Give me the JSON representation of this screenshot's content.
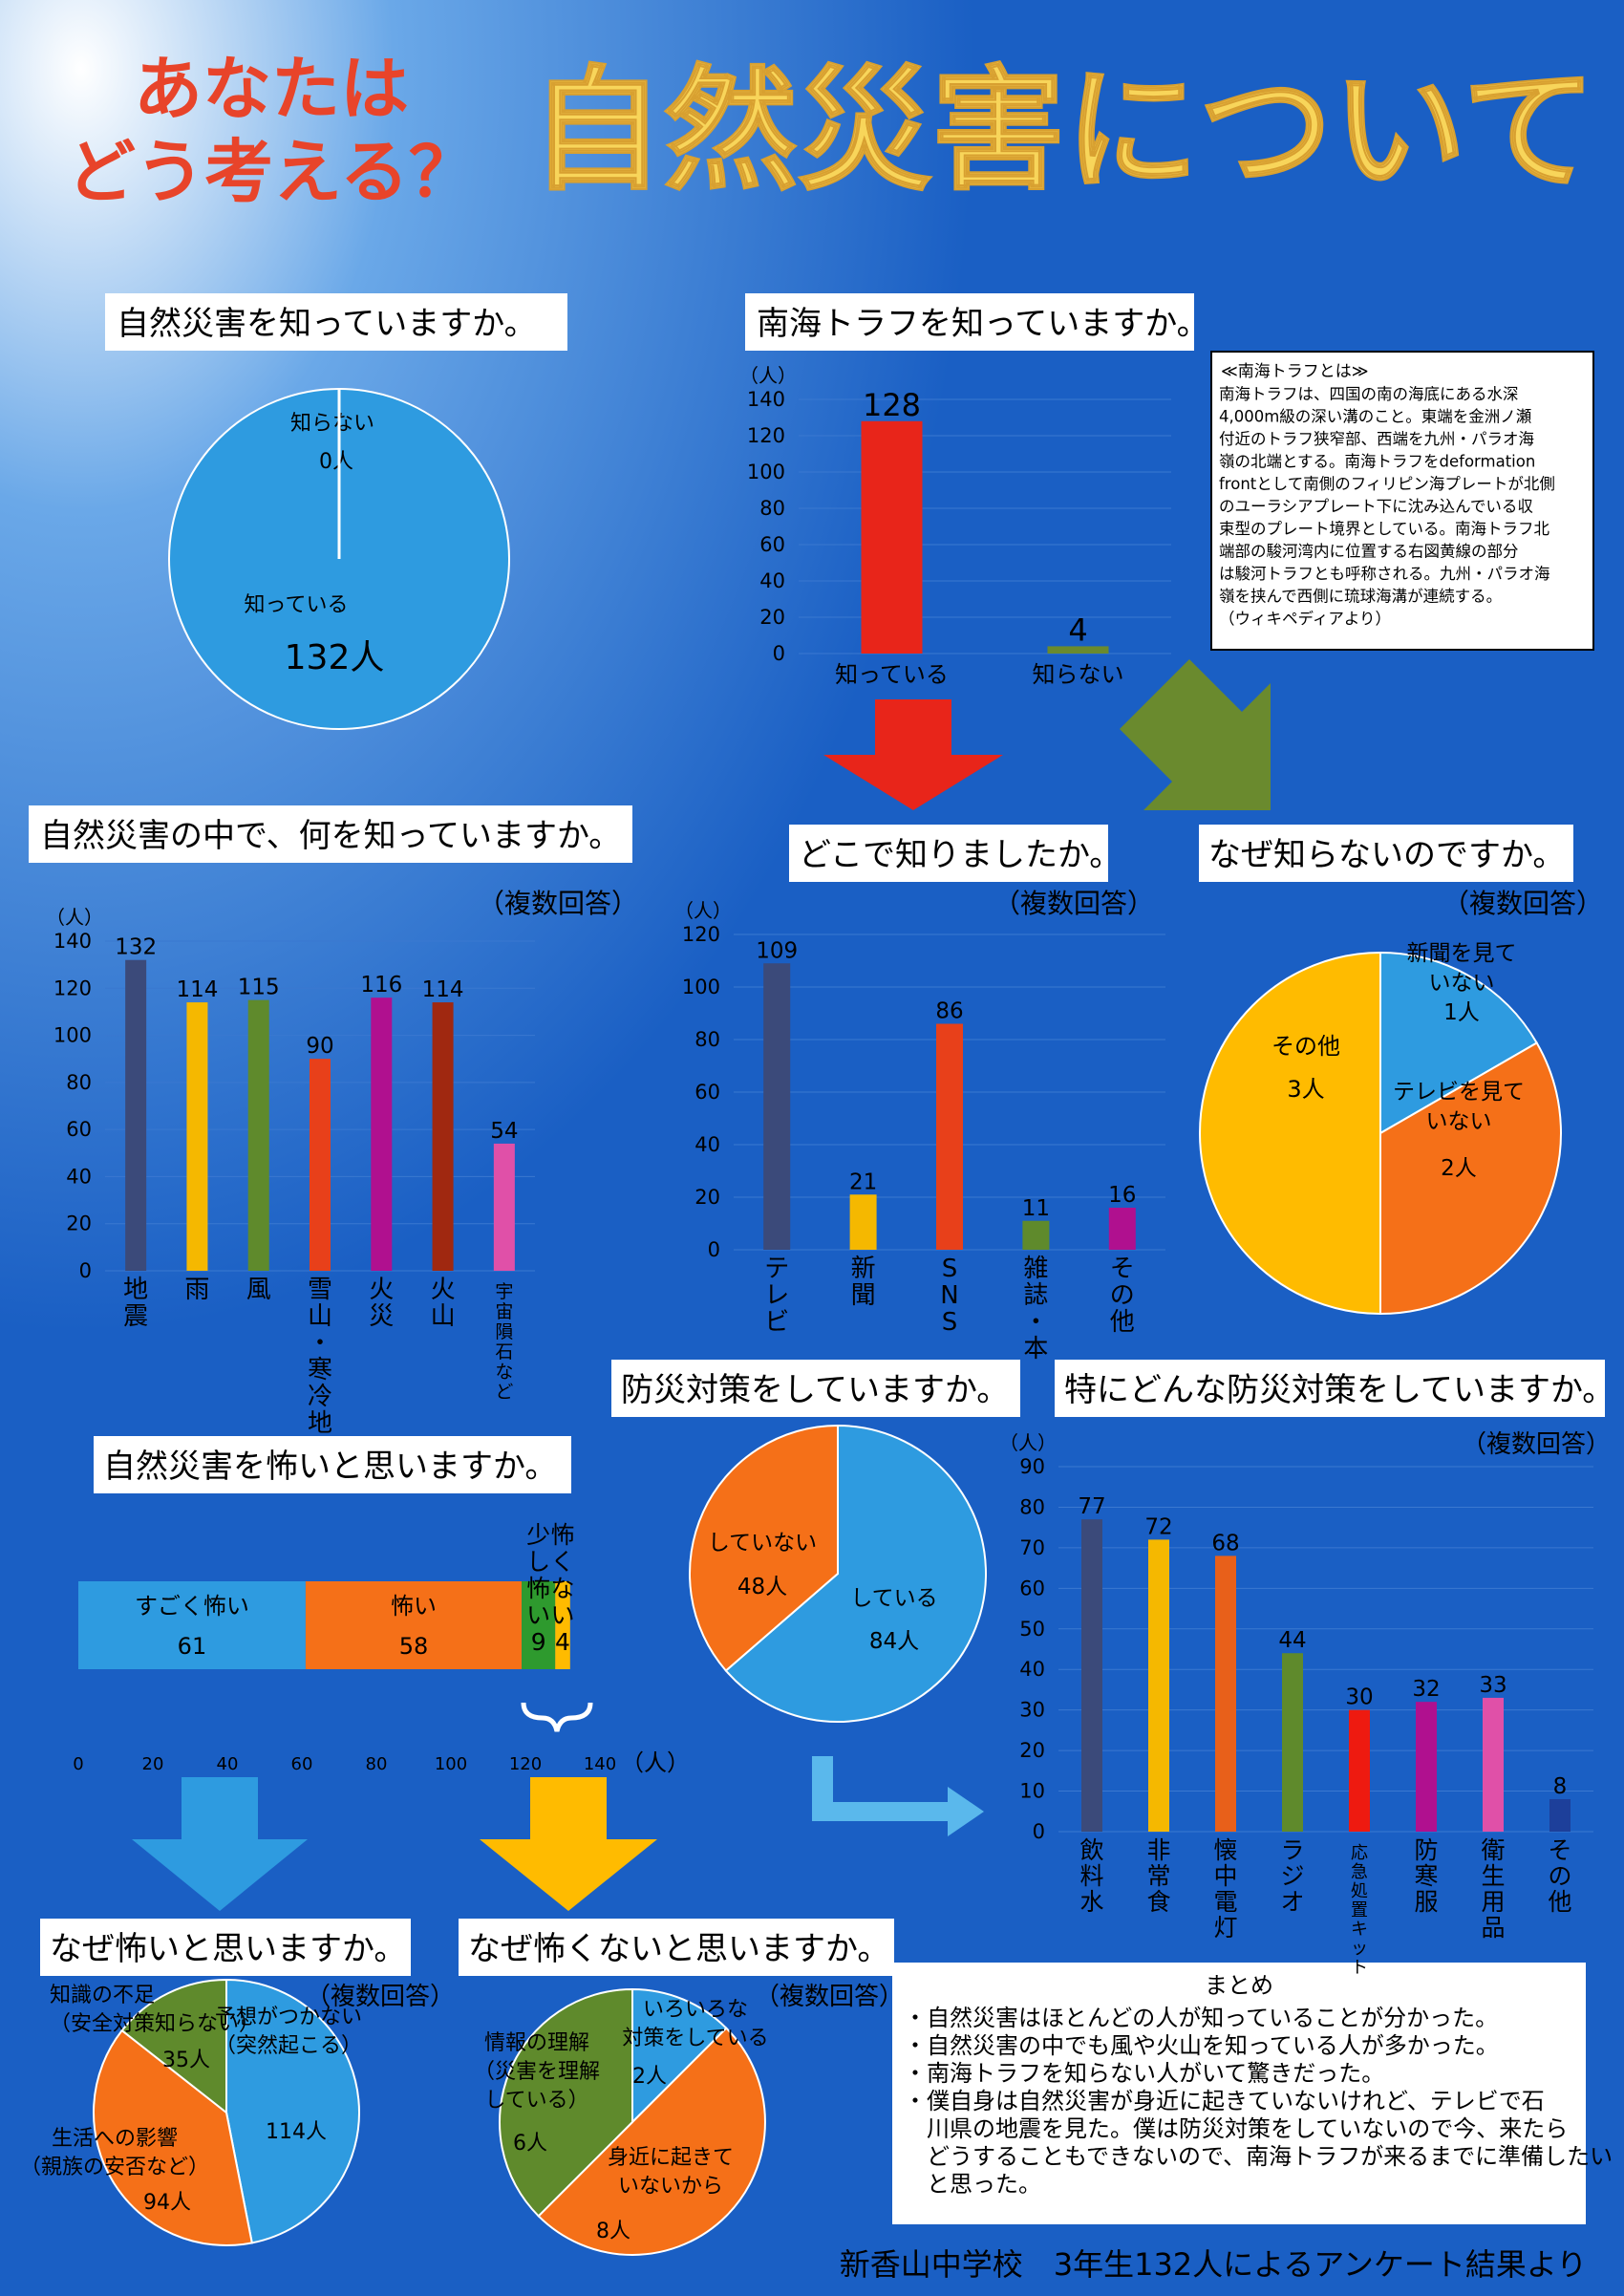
{
  "header": {
    "sub_line1": "あなたは",
    "sub_line2": "どう考える？",
    "title": "自然災害について"
  },
  "colors": {
    "bg": "#1a5fc4",
    "title": "#f8d55a",
    "sub": "#e8442a",
    "box": "#ffffff"
  },
  "sections": {
    "q1": "自然災害を知っていますか。",
    "q2": "南海トラフを知っていますか。",
    "q3": "自然災害の中で、何を知っていますか。",
    "q4": "どこで知りましたか。",
    "q5": "なぜ知らないのですか。",
    "q6": "防災対策をしていますか。",
    "q7": "特にどんな防災対策をしていますか。",
    "q8": "自然災害を怖いと思いますか。",
    "q9": "なぜ怖いと思いますか。",
    "q10": "なぜ怖くないと思いますか。"
  },
  "multi_answer": "（複数回答）",
  "unit_label": "（人）",
  "nankai_note": {
    "title": "≪南海トラフとは≫",
    "lines": [
      "南海トラフは、四国の南の海底にある水深",
      "4,000m級の深い溝のこと。東端を金洲ノ瀬",
      "付近のトラフ狭窄部、西端を九州・パラオ海",
      "嶺の北端とする。南海トラフをdeformation",
      "frontとして南側のフィリピン海プレートが北側",
      "のユーラシアプレート下に沈み込んでいる収",
      "束型のプレート境界としている。南海トラフ北",
      "端部の駿河湾内に位置する右図黄線の部分",
      "は駿河トラフとも呼称される。九州・パラオ海",
      "嶺を挟んで西側に琉球海溝が連続する。",
      "（ウィキペディアより）"
    ]
  },
  "summary": {
    "title": "まとめ",
    "lines": [
      "・自然災害はほとんどの人が知っていることが分かった。",
      "・自然災害の中でも風や火山を知っている人が多かった。",
      "・南海トラフを知らない人がいて驚きだった。",
      "・僕自身は自然災害が身近に起きていないけれど、テレビで石",
      "　川県の地震を見た。僕は防災対策をしていないので今、来たら",
      "　どうすることもできないので、南海トラフが来るまでに準備したい",
      "　と思った。"
    ]
  },
  "footer": "新香山中学校　3年生132人によるアンケート結果より",
  "chart_data": [
    {
      "id": "know_disaster",
      "type": "pie",
      "labels": [
        "知っている",
        "知らない"
      ],
      "values": [
        132,
        0
      ],
      "value_labels": [
        "132人",
        "0人"
      ],
      "colors": [
        "#2e9be0",
        "#ffffff"
      ]
    },
    {
      "id": "know_nankai",
      "type": "bar",
      "categories": [
        "知っている",
        "知らない"
      ],
      "values": [
        128,
        4
      ],
      "ylim": [
        0,
        140
      ],
      "yticks": [
        0,
        20,
        40,
        60,
        80,
        100,
        120,
        140
      ],
      "colors": [
        "#e8251a",
        "#6a8a2e"
      ],
      "ylabel": "（人）"
    },
    {
      "id": "which_disaster",
      "type": "bar",
      "categories": [
        "地震",
        "雨",
        "風",
        "雪山・寒冷地",
        "火災",
        "火山",
        "宇宙隕石など"
      ],
      "values": [
        132,
        114,
        115,
        90,
        116,
        114,
        54
      ],
      "ylim": [
        0,
        140
      ],
      "yticks": [
        0,
        20,
        40,
        60,
        80,
        100,
        120,
        140
      ],
      "colors": [
        "#3b4a7a",
        "#f5b800",
        "#5f8a2c",
        "#e8401a",
        "#b0108f",
        "#a02810",
        "#e050a8"
      ],
      "ylabel": "（人）",
      "note": "（複数回答）"
    },
    {
      "id": "where_learned",
      "type": "bar",
      "categories": [
        "テレビ",
        "新聞",
        "SNS",
        "雑誌・本",
        "その他"
      ],
      "values": [
        109,
        21,
        86,
        11,
        16
      ],
      "ylim": [
        0,
        120
      ],
      "yticks": [
        0,
        20,
        40,
        60,
        80,
        100,
        120
      ],
      "colors": [
        "#3b4a7a",
        "#f5b800",
        "#e8401a",
        "#5f8a2c",
        "#b0108f"
      ],
      "ylabel": "（人）",
      "note": "（複数回答）"
    },
    {
      "id": "why_not_know",
      "type": "pie",
      "labels": [
        "新聞を見ていない",
        "テレビを見ていない",
        "その他"
      ],
      "values": [
        1,
        2,
        3
      ],
      "value_labels": [
        "1人",
        "2人",
        "3人"
      ],
      "colors": [
        "#2e9be0",
        "#f57018",
        "#ffbb00"
      ],
      "note": "（複数回答）"
    },
    {
      "id": "prevention",
      "type": "pie",
      "labels": [
        "している",
        "していない"
      ],
      "values": [
        84,
        48
      ],
      "value_labels": [
        "84人",
        "48人"
      ],
      "colors": [
        "#2e9be0",
        "#f57018"
      ]
    },
    {
      "id": "prevention_kind",
      "type": "bar",
      "categories": [
        "飲料水",
        "非常食",
        "懐中電灯",
        "ラジオ",
        "応急処置キット",
        "防寒服",
        "衛生用品",
        "その他"
      ],
      "values": [
        77,
        72,
        68,
        44,
        30,
        32,
        33,
        8
      ],
      "ylim": [
        0,
        90
      ],
      "yticks": [
        0,
        10,
        20,
        30,
        40,
        50,
        60,
        70,
        80,
        90
      ],
      "colors": [
        "#3b4a7a",
        "#f5b800",
        "#e8601a",
        "#5f8a2c",
        "#ee1a10",
        "#b0108f",
        "#e050a8",
        "#1d3f9a"
      ],
      "ylabel": "（人）",
      "note": "（複数回答）"
    },
    {
      "id": "afraid",
      "type": "bar",
      "orientation": "horizontal-stacked",
      "segments": [
        "すごく怖い",
        "怖い",
        "少し怖い",
        "怖くない"
      ],
      "values": [
        61,
        58,
        9,
        4
      ],
      "xlim": [
        0,
        140
      ],
      "xticks": [
        0,
        20,
        40,
        60,
        80,
        100,
        120,
        140
      ],
      "colors": [
        "#2e9be0",
        "#f57018",
        "#2e9a2e",
        "#ffbb00"
      ],
      "xlabel": "（人）"
    },
    {
      "id": "why_afraid",
      "type": "pie",
      "labels": [
        "予想がつかない（突然起こる）",
        "生活への影響（親族の安否など）",
        "知識の不足（安全対策知らない）"
      ],
      "values": [
        114,
        94,
        35
      ],
      "value_labels": [
        "114人",
        "94人",
        "35人"
      ],
      "colors": [
        "#2e9be0",
        "#f57018",
        "#5f8a2c"
      ],
      "note": "（複数回答）"
    },
    {
      "id": "why_not_afraid",
      "type": "pie",
      "labels": [
        "いろいろな対策をしている",
        "身近に起きていないから",
        "情報の理解（災害を理解している）"
      ],
      "values": [
        2,
        8,
        6
      ],
      "value_labels": [
        "2人",
        "8人",
        "6人"
      ],
      "colors": [
        "#2e9be0",
        "#f57018",
        "#5f8a2c"
      ],
      "note": "（複数回答）"
    }
  ]
}
